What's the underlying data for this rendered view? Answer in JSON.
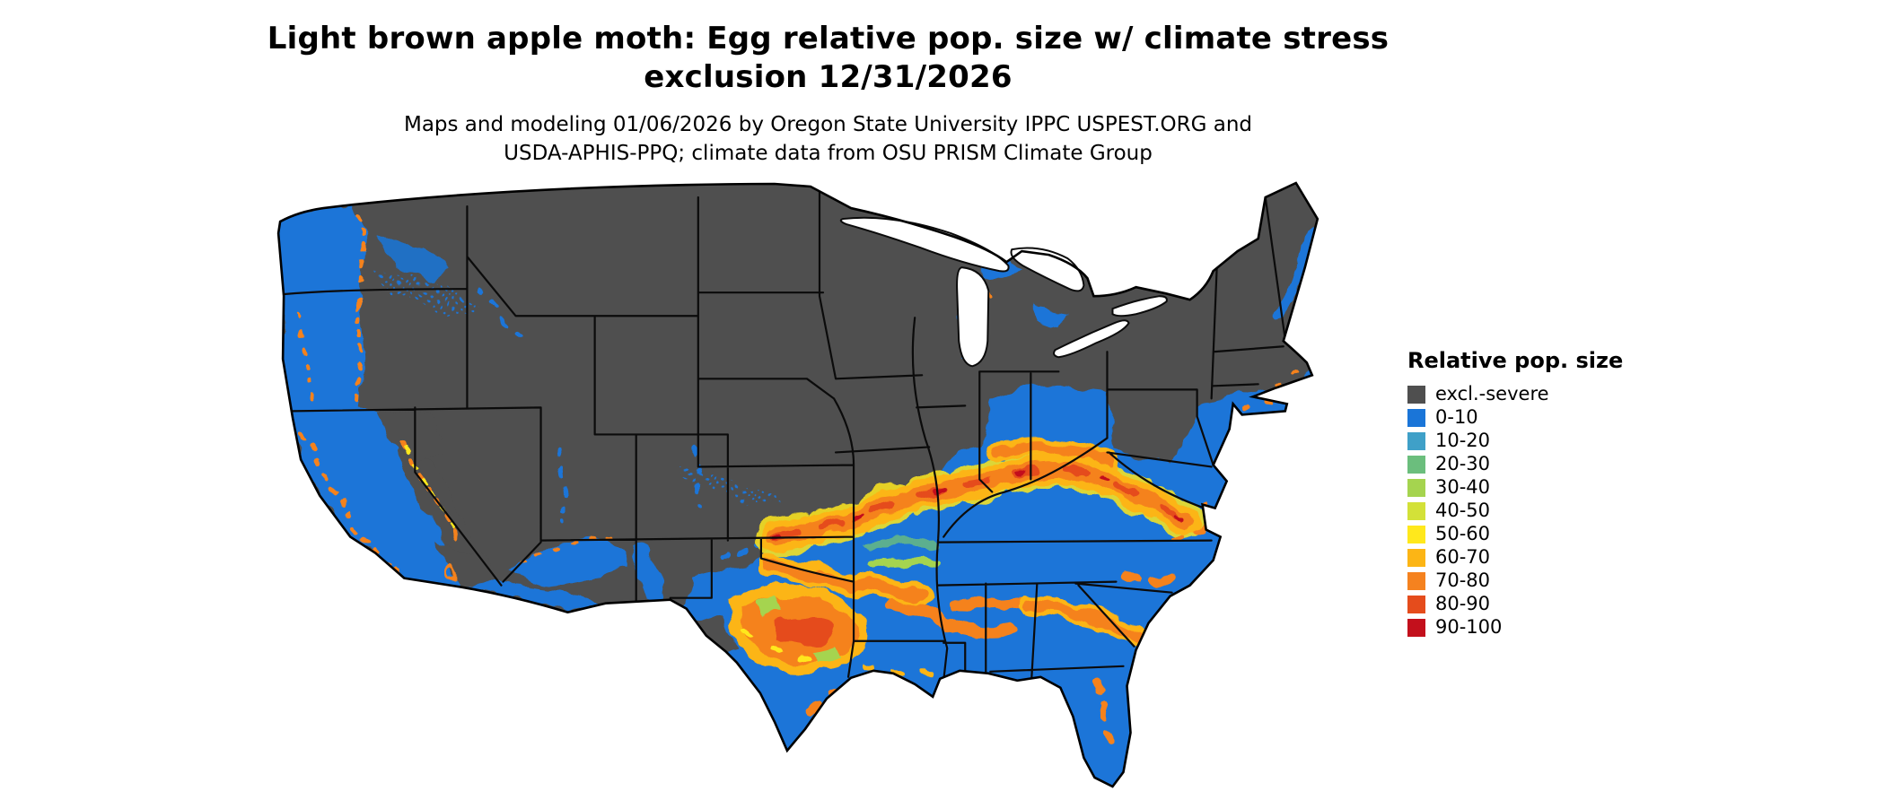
{
  "header": {
    "title_line1": "Light brown apple moth: Egg relative pop. size w/ climate stress",
    "title_line2": "exclusion 12/31/2026",
    "subtitle_line1": "Maps and modeling 01/06/2026 by Oregon State University IPPC USPEST.ORG and",
    "subtitle_line2": "USDA-APHIS-PPQ; climate data from OSU PRISM Climate Group"
  },
  "legend": {
    "title": "Relative pop. size",
    "items": [
      {
        "label": "excl.-severe",
        "color": "#4F4F4F"
      },
      {
        "label": "0-10",
        "color": "#1A75D8"
      },
      {
        "label": "10-20",
        "color": "#3FA0C8"
      },
      {
        "label": "20-30",
        "color": "#6BBE7D"
      },
      {
        "label": "30-40",
        "color": "#A5D44F"
      },
      {
        "label": "40-50",
        "color": "#D3E138"
      },
      {
        "label": "50-60",
        "color": "#FFE81C"
      },
      {
        "label": "60-70",
        "color": "#FCB515"
      },
      {
        "label": "70-80",
        "color": "#F5821F"
      },
      {
        "label": "80-90",
        "color": "#E54C1C"
      },
      {
        "label": "90-100",
        "color": "#C3101C"
      }
    ]
  }
}
